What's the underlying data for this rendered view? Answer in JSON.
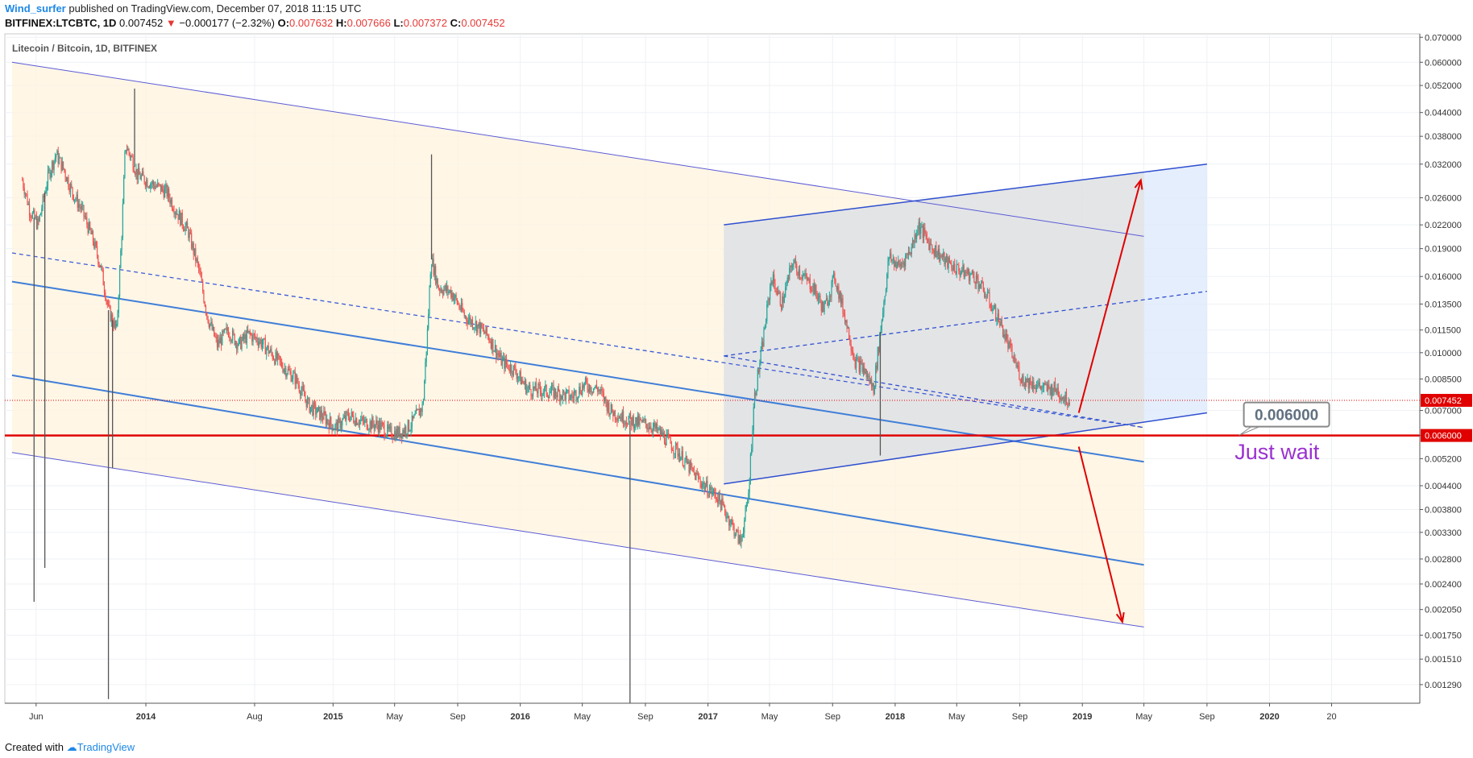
{
  "header": {
    "author": "Wind_surfer",
    "published_text": "published on TradingView.com, December 07, 2018 11:15 UTC"
  },
  "quote": {
    "symbol": "BITFINEX:LTCBTC, 1D",
    "last": "0.007452",
    "change_arrow": "▼",
    "change": "−0.000177 (−2.32%)",
    "o_label": "O:",
    "o_value": "0.007632",
    "h_label": "H:",
    "h_value": "0.007666",
    "l_label": "L:",
    "l_value": "0.007372",
    "c_label": "C:",
    "c_value": "0.007452"
  },
  "footer": {
    "created_with": "Created with",
    "brand": "TradingView"
  },
  "colors": {
    "up": "#26a69a",
    "down": "#ef5350",
    "wick": "#555555",
    "channel_fill": "#fff3dd",
    "range_fill": "#e3e3e3",
    "projection_fill": "#dce8fb",
    "support_line": "#e00000",
    "annotation": "#9b30d0",
    "arrow": "#e00000"
  },
  "chart_data": {
    "type": "candlestick",
    "title": "Litecoin / Bitcoin, 1D, BITFINEX",
    "scale": "log",
    "ylim": [
      0.00115,
      0.0715
    ],
    "xlim": [
      "2013-04-01",
      "2020-10-20"
    ],
    "grid": true,
    "x_ticks": [
      {
        "label": "Jun",
        "date": "2013-06-01"
      },
      {
        "label": "2014",
        "date": "2014-01-01"
      },
      {
        "label": "Aug",
        "date": "2014-08-01"
      },
      {
        "label": "2015",
        "date": "2015-01-01"
      },
      {
        "label": "May",
        "date": "2015-05-01"
      },
      {
        "label": "Sep",
        "date": "2015-09-01"
      },
      {
        "label": "2016",
        "date": "2016-01-01"
      },
      {
        "label": "May",
        "date": "2016-05-01"
      },
      {
        "label": "Sep",
        "date": "2016-09-01"
      },
      {
        "label": "2017",
        "date": "2017-01-01"
      },
      {
        "label": "May",
        "date": "2017-05-01"
      },
      {
        "label": "Sep",
        "date": "2017-09-01"
      },
      {
        "label": "2018",
        "date": "2018-01-01"
      },
      {
        "label": "May",
        "date": "2018-05-01"
      },
      {
        "label": "Sep",
        "date": "2018-09-01"
      },
      {
        "label": "2019",
        "date": "2019-01-01"
      },
      {
        "label": "May",
        "date": "2019-05-01"
      },
      {
        "label": "Sep",
        "date": "2019-09-01"
      },
      {
        "label": "2020",
        "date": "2020-01-01"
      },
      {
        "label": "20",
        "date": "2020-05-01"
      }
    ],
    "y_ticks": [
      "0.070000",
      "0.060000",
      "0.052000",
      "0.044000",
      "0.038000",
      "0.032000",
      "0.026000",
      "0.022000",
      "0.019000",
      "0.016000",
      "0.013500",
      "0.011500",
      "0.010000",
      "0.008500",
      "0.007000",
      "0.006000",
      "0.005200",
      "0.004400",
      "0.003800",
      "0.003300",
      "0.002800",
      "0.002400",
      "0.002050",
      "0.001750",
      "0.001510",
      "0.001290"
    ],
    "price_series": [
      [
        "2013-05-05",
        0.029
      ],
      [
        "2013-05-20",
        0.024
      ],
      [
        "2013-06-05",
        0.022
      ],
      [
        "2013-06-25",
        0.03
      ],
      [
        "2013-07-10",
        0.034
      ],
      [
        "2013-07-25",
        0.031
      ],
      [
        "2013-08-10",
        0.027
      ],
      [
        "2013-08-30",
        0.024
      ],
      [
        "2013-09-20",
        0.02
      ],
      [
        "2013-10-05",
        0.017
      ],
      [
        "2013-10-20",
        0.013
      ],
      [
        "2013-11-05",
        0.0115
      ],
      [
        "2013-11-15",
        0.021
      ],
      [
        "2013-11-22",
        0.036
      ],
      [
        "2013-12-05",
        0.033
      ],
      [
        "2013-12-15",
        0.03
      ],
      [
        "2014-01-01",
        0.029
      ],
      [
        "2014-01-20",
        0.028
      ],
      [
        "2014-02-10",
        0.027
      ],
      [
        "2014-03-01",
        0.024
      ],
      [
        "2014-03-25",
        0.021
      ],
      [
        "2014-04-15",
        0.0165
      ],
      [
        "2014-05-01",
        0.0125
      ],
      [
        "2014-05-20",
        0.0105
      ],
      [
        "2014-06-10",
        0.0115
      ],
      [
        "2014-07-01",
        0.0105
      ],
      [
        "2014-07-20",
        0.0112
      ],
      [
        "2014-08-10",
        0.0108
      ],
      [
        "2014-09-01",
        0.01
      ],
      [
        "2014-09-25",
        0.0092
      ],
      [
        "2014-10-20",
        0.0085
      ],
      [
        "2014-11-15",
        0.0072
      ],
      [
        "2014-12-10",
        0.0068
      ],
      [
        "2015-01-05",
        0.0063
      ],
      [
        "2015-02-01",
        0.0068
      ],
      [
        "2015-03-01",
        0.0065
      ],
      [
        "2015-04-01",
        0.0064
      ],
      [
        "2015-04-20",
        0.0061
      ],
      [
        "2015-05-10",
        0.0061
      ],
      [
        "2015-06-01",
        0.0064
      ],
      [
        "2015-06-25",
        0.0072
      ],
      [
        "2015-07-05",
        0.012
      ],
      [
        "2015-07-11",
        0.018
      ],
      [
        "2015-07-25",
        0.015
      ],
      [
        "2015-08-20",
        0.0145
      ],
      [
        "2015-09-15",
        0.0125
      ],
      [
        "2015-10-10",
        0.0118
      ],
      [
        "2015-11-01",
        0.011
      ],
      [
        "2015-11-25",
        0.0095
      ],
      [
        "2015-12-20",
        0.009
      ],
      [
        "2016-01-15",
        0.008
      ],
      [
        "2016-02-15",
        0.0079
      ],
      [
        "2016-03-15",
        0.0078
      ],
      [
        "2016-04-10",
        0.0076
      ],
      [
        "2016-05-05",
        0.0082
      ],
      [
        "2016-06-01",
        0.008
      ],
      [
        "2016-06-25",
        0.007
      ],
      [
        "2016-07-20",
        0.0067
      ],
      [
        "2016-08-15",
        0.0065
      ],
      [
        "2016-09-10",
        0.0064
      ],
      [
        "2016-10-05",
        0.006
      ],
      [
        "2016-11-05",
        0.0054
      ],
      [
        "2016-12-01",
        0.0048
      ],
      [
        "2016-12-25",
        0.0044
      ],
      [
        "2017-01-20",
        0.0041
      ],
      [
        "2017-02-15",
        0.0035
      ],
      [
        "2017-03-05",
        0.0031
      ],
      [
        "2017-03-20",
        0.004
      ],
      [
        "2017-04-01",
        0.0075
      ],
      [
        "2017-04-15",
        0.01
      ],
      [
        "2017-05-05",
        0.016
      ],
      [
        "2017-05-25",
        0.0135
      ],
      [
        "2017-06-15",
        0.0175
      ],
      [
        "2017-07-05",
        0.016
      ],
      [
        "2017-07-25",
        0.015
      ],
      [
        "2017-08-15",
        0.013
      ],
      [
        "2017-09-05",
        0.016
      ],
      [
        "2017-09-25",
        0.0125
      ],
      [
        "2017-10-15",
        0.0095
      ],
      [
        "2017-11-01",
        0.009
      ],
      [
        "2017-11-20",
        0.008
      ],
      [
        "2017-12-05",
        0.012
      ],
      [
        "2017-12-20",
        0.018
      ],
      [
        "2018-01-10",
        0.017
      ],
      [
        "2018-02-01",
        0.019
      ],
      [
        "2018-02-15",
        0.022
      ],
      [
        "2018-03-10",
        0.0195
      ],
      [
        "2018-04-10",
        0.0175
      ],
      [
        "2018-05-10",
        0.0165
      ],
      [
        "2018-06-05",
        0.016
      ],
      [
        "2018-07-01",
        0.014
      ],
      [
        "2018-07-25",
        0.012
      ],
      [
        "2018-08-15",
        0.01
      ],
      [
        "2018-09-05",
        0.0085
      ],
      [
        "2018-09-25",
        0.0083
      ],
      [
        "2018-10-20",
        0.008
      ],
      [
        "2018-11-10",
        0.008
      ],
      [
        "2018-11-25",
        0.0076
      ],
      [
        "2018-12-07",
        0.007452
      ]
    ],
    "spikes": [
      [
        "2013-05-28",
        0.00215
      ],
      [
        "2013-06-18",
        0.00265
      ],
      [
        "2013-10-20",
        0.00118
      ],
      [
        "2013-10-28",
        0.0049
      ],
      [
        "2013-12-10",
        0.051
      ],
      [
        "2015-07-12",
        0.034
      ],
      [
        "2016-08-02",
        0.00115
      ],
      [
        "2017-12-03",
        0.0053
      ]
    ],
    "overlays": [
      {
        "kind": "channel-upper",
        "from": [
          "2013-04-15",
          0.06
        ],
        "to": [
          "2019-05-01",
          0.0205
        ]
      },
      {
        "kind": "channel-lower",
        "from": [
          "2013-04-15",
          0.0054
        ],
        "to": [
          "2019-05-01",
          0.00184
        ]
      },
      {
        "kind": "channel-mid-dashed",
        "from": [
          "2013-04-15",
          0.0185
        ],
        "to": [
          "2019-05-01",
          0.0063
        ]
      },
      {
        "kind": "inner-upper",
        "from": [
          "2013-04-15",
          0.0155
        ],
        "to": [
          "2019-05-01",
          0.0051
        ]
      },
      {
        "kind": "inner-lower",
        "from": [
          "2013-04-15",
          0.0087
        ],
        "to": [
          "2019-05-01",
          0.0027
        ]
      },
      {
        "kind": "range-upper",
        "from": [
          "2017-02-01",
          0.022
        ],
        "to": [
          "2019-09-01",
          0.032
        ]
      },
      {
        "kind": "range-lower",
        "from": [
          "2017-02-01",
          0.00445
        ],
        "to": [
          "2019-09-01",
          0.0069
        ]
      },
      {
        "kind": "range-mid-dashed",
        "from": [
          "2017-02-01",
          0.0098
        ],
        "to": [
          "2019-09-01",
          0.0146
        ]
      },
      {
        "kind": "range-mid-dashed-2",
        "from": [
          "2017-02-01",
          0.0098
        ],
        "to": [
          "2019-05-01",
          0.0063
        ]
      }
    ],
    "support_level": {
      "value": 0.006,
      "label": "0.006000"
    },
    "current_price": {
      "value": 0.007452,
      "label": "0.007452"
    },
    "callout": {
      "text": "0.006000"
    },
    "annotation": {
      "text": "Just wait"
    }
  }
}
